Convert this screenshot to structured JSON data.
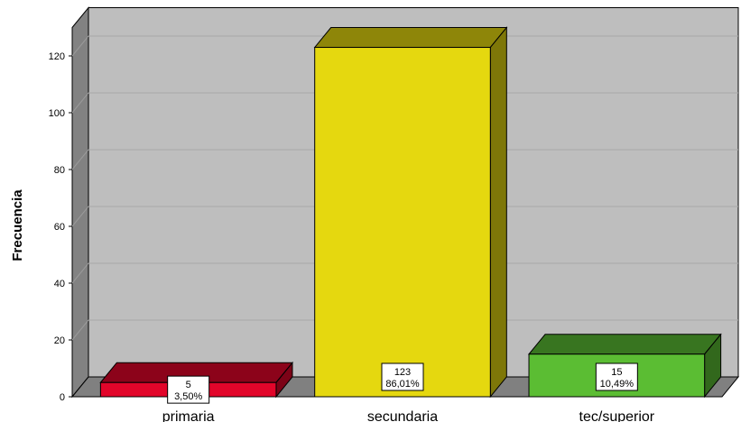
{
  "chart_data": {
    "type": "bar",
    "categories": [
      "primaria",
      "secundaria",
      "tec/superior"
    ],
    "values": [
      5,
      123,
      15
    ],
    "percent_labels": [
      "3,50%",
      "86,01%",
      "10,49%"
    ],
    "value_labels": [
      "5",
      "123",
      "15"
    ],
    "xlabel": "",
    "ylabel": "Frecuencia",
    "ylim": [
      0,
      130
    ],
    "yticks": [
      0,
      20,
      40,
      60,
      80,
      100,
      120
    ],
    "grid": true,
    "legend": "none",
    "colors": {
      "primaria": "#e2052a",
      "secundaria": "#e5d80f",
      "tec/superior": "#5bbd33",
      "plot_back": "#bebebe",
      "plot_left_wall": "#828282",
      "plot_floor": "#808080"
    }
  }
}
